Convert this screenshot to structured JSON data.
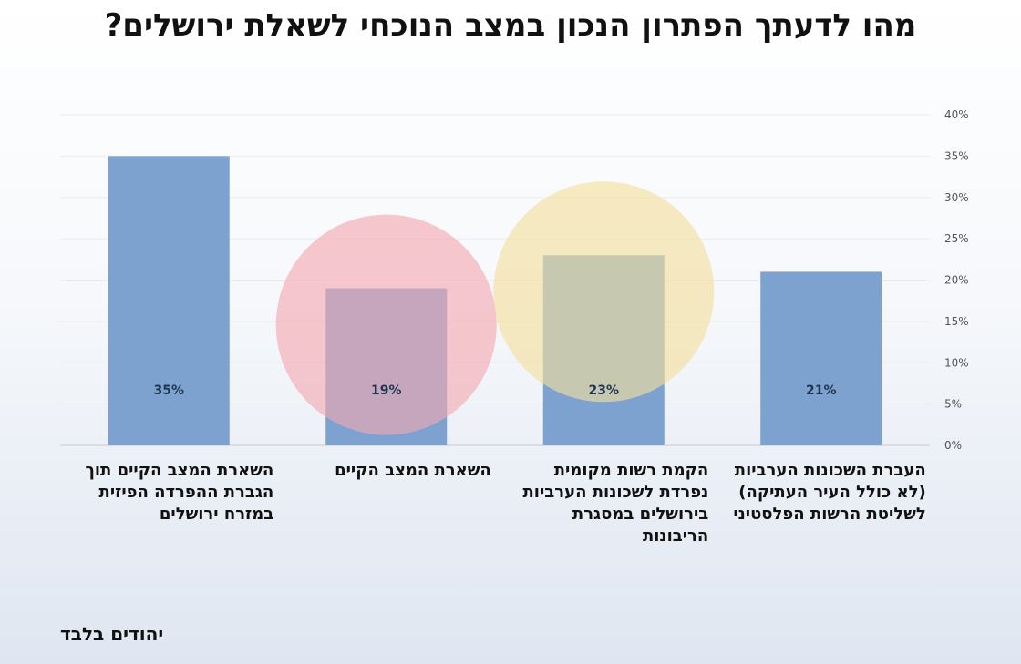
{
  "title": "מהו לדעתך הפתרון הנכון במצב הנוכחי לשאלת ירושלים?",
  "footnote": "יהודים בלבד",
  "chart_data": {
    "type": "bar",
    "categories": [
      "השארת המצב הקיים תוך\nהגברת ההפרדה הפיזית\nבמזרח ירושלים",
      "השארת המצב הקיים",
      "הקמת רשות מקומית\nנפרדת לשכונות הערביות\nבירושלים במסגרת\nהריבונות",
      "העברת השכונות הערביות\n(לא כולל העיר העתיקה)\nלשליטת הרשות הפלסטיני"
    ],
    "values": [
      35,
      19,
      23,
      21
    ],
    "data_labels": [
      "35%",
      "19%",
      "23%",
      "21%"
    ],
    "highlight": [
      {
        "category_index": 1,
        "color": "#f4a8b0"
      },
      {
        "category_index": 2,
        "color": "#f3df9c"
      }
    ],
    "y_ticks": [
      "0%",
      "5%",
      "10%",
      "15%",
      "20%",
      "25%",
      "30%",
      "35%",
      "40%"
    ],
    "ylim": [
      0,
      40
    ],
    "y_axis_side": "right",
    "grid": true,
    "bar_color": "#7da2cf"
  }
}
